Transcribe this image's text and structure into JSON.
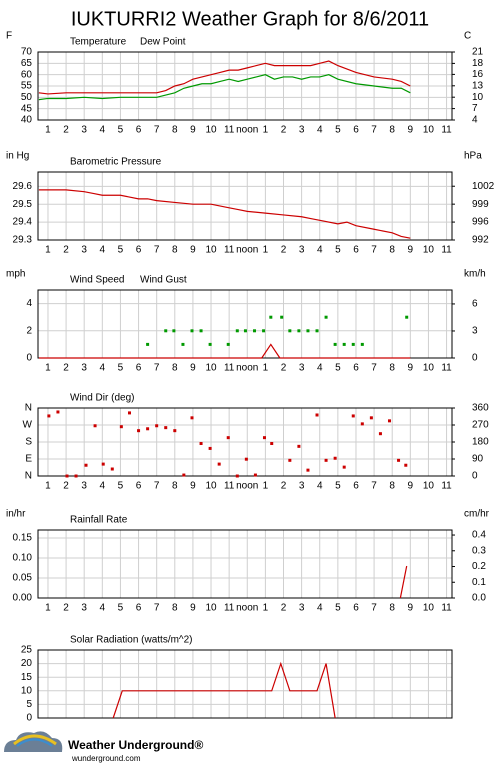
{
  "title": "IUKTURRI2 Weather Graph for 8/6/2011",
  "logo": {
    "name": "Weather Underground®",
    "url": "wunderground.com"
  },
  "chart_data": [
    {
      "type": "line",
      "ylabel": "F",
      "y2label": "C",
      "xlim": [
        0.45,
        23.3
      ],
      "xticks": [
        1,
        2,
        3,
        4,
        5,
        6,
        7,
        8,
        9,
        10,
        11,
        {
          "value": 12,
          "label": "noon"
        },
        {
          "value": 13,
          "label": "1"
        },
        {
          "value": 14,
          "label": "2"
        },
        {
          "value": 15,
          "label": "3"
        },
        {
          "value": 16,
          "label": "4"
        },
        {
          "value": 17,
          "label": "5"
        },
        {
          "value": 18,
          "label": "6"
        },
        {
          "value": 19,
          "label": "7"
        },
        {
          "value": 20,
          "label": "8"
        },
        {
          "value": 21,
          "label": "9"
        },
        {
          "value": 22,
          "label": "10"
        },
        {
          "value": 23,
          "label": "11"
        }
      ],
      "ylim": [
        40,
        70
      ],
      "yticks": [
        40,
        45,
        50,
        55,
        60,
        65,
        70
      ],
      "y2lim": [
        4.4,
        21.1
      ],
      "y2ticks": [
        {
          "value": 4.4,
          "label": "4"
        },
        {
          "value": 7.2,
          "label": "7"
        },
        10,
        {
          "value": 12.8,
          "label": "13"
        },
        {
          "value": 15.6,
          "label": "16"
        },
        {
          "value": 18.3,
          "label": "18"
        },
        {
          "value": 21.1,
          "label": "21"
        }
      ],
      "grid": true,
      "series": [
        {
          "name": "Temperature",
          "color": "#cc0000",
          "x": [
            0.5,
            1,
            2,
            3,
            4,
            5,
            6,
            7,
            7.5,
            8,
            8.5,
            9,
            9.5,
            10,
            10.5,
            11,
            11.5,
            12,
            12.5,
            13,
            13.5,
            14,
            14.5,
            15,
            15.5,
            16,
            16.5,
            17,
            18,
            19,
            20,
            20.5,
            21
          ],
          "values": [
            52,
            51.5,
            52,
            52,
            52,
            52,
            52,
            52,
            53,
            55,
            56,
            58,
            59,
            60,
            61,
            62,
            62,
            63,
            64,
            65,
            64,
            64,
            64,
            64,
            64,
            65,
            66,
            64,
            61,
            59,
            58,
            57,
            55
          ]
        },
        {
          "name": "Dew Point",
          "color": "#009900",
          "x": [
            0.5,
            1,
            2,
            3,
            4,
            5,
            6,
            7,
            7.5,
            8,
            8.5,
            9,
            9.5,
            10,
            10.5,
            11,
            11.5,
            12,
            12.5,
            13,
            13.5,
            14,
            14.5,
            15,
            15.5,
            16,
            16.5,
            17,
            18,
            19,
            20,
            20.5,
            21
          ],
          "values": [
            49,
            49.5,
            49.5,
            50,
            49.5,
            50,
            50,
            50,
            51,
            52,
            54,
            55,
            56,
            56,
            57,
            58,
            57,
            58,
            59,
            60,
            58,
            59,
            59,
            58,
            59,
            59,
            60,
            58,
            56,
            55,
            54,
            54,
            52
          ]
        }
      ]
    },
    {
      "type": "line",
      "ylabel": "in Hg",
      "y2label": "hPa",
      "xlim": [
        0.45,
        23.3
      ],
      "xticks": [
        1,
        2,
        3,
        4,
        5,
        6,
        7,
        8,
        9,
        10,
        11,
        {
          "value": 12,
          "label": "noon"
        },
        {
          "value": 13,
          "label": "1"
        },
        {
          "value": 14,
          "label": "2"
        },
        {
          "value": 15,
          "label": "3"
        },
        {
          "value": 16,
          "label": "4"
        },
        {
          "value": 17,
          "label": "5"
        },
        {
          "value": 18,
          "label": "6"
        },
        {
          "value": 19,
          "label": "7"
        },
        {
          "value": 20,
          "label": "8"
        },
        {
          "value": 21,
          "label": "9"
        },
        {
          "value": 22,
          "label": "10"
        },
        {
          "value": 23,
          "label": "11"
        }
      ],
      "ylim": [
        29.3,
        29.68
      ],
      "yticks": [
        29.3,
        29.4,
        29.5,
        29.6
      ],
      "y2lim": [
        992.2,
        1005.1
      ],
      "y2ticks": [
        {
          "value": 992.2,
          "label": "992"
        },
        {
          "value": 995.6,
          "label": "996"
        },
        999,
        {
          "value": 1002.4,
          "label": "1002"
        }
      ],
      "grid": true,
      "series": [
        {
          "name": "Barometric Pressure",
          "color": "#cc0000",
          "x": [
            0.5,
            1,
            2,
            3,
            3.5,
            4,
            5,
            5.5,
            6,
            6.5,
            7,
            8,
            9,
            10,
            11,
            11.5,
            12,
            13,
            14,
            15,
            15.5,
            16,
            17,
            17.5,
            18,
            19,
            20,
            20.5,
            21
          ],
          "values": [
            29.58,
            29.58,
            29.58,
            29.57,
            29.56,
            29.55,
            29.55,
            29.54,
            29.53,
            29.53,
            29.52,
            29.51,
            29.5,
            29.5,
            29.48,
            29.47,
            29.46,
            29.45,
            29.44,
            29.43,
            29.42,
            29.41,
            29.39,
            29.4,
            29.38,
            29.36,
            29.34,
            29.32,
            29.31
          ]
        }
      ]
    },
    {
      "type": "line",
      "ylabel": "mph",
      "y2label": "km/h",
      "xlim": [
        0.45,
        23.3
      ],
      "xticks": [
        1,
        2,
        3,
        4,
        5,
        6,
        7,
        8,
        9,
        10,
        11,
        {
          "value": 12,
          "label": "noon"
        },
        {
          "value": 13,
          "label": "1"
        },
        {
          "value": 14,
          "label": "2"
        },
        {
          "value": 15,
          "label": "3"
        },
        {
          "value": 16,
          "label": "4"
        },
        {
          "value": 17,
          "label": "5"
        },
        {
          "value": 18,
          "label": "6"
        },
        {
          "value": 19,
          "label": "7"
        },
        {
          "value": 20,
          "label": "8"
        },
        {
          "value": 21,
          "label": "9"
        },
        {
          "value": 22,
          "label": "10"
        },
        {
          "value": 23,
          "label": "11"
        }
      ],
      "ylim": [
        0,
        5
      ],
      "yticks": [
        0,
        2,
        4
      ],
      "y2lim": [
        0,
        8.05
      ],
      "y2ticks": [
        0,
        {
          "value": 3.2,
          "label": "3"
        },
        {
          "value": 6.4,
          "label": "6"
        }
      ],
      "grid": true,
      "series": [
        {
          "name": "Wind Speed",
          "color": "#cc0000",
          "x": [
            0.5,
            12.8,
            13.3,
            13.8,
            21
          ],
          "values": [
            0,
            0,
            1,
            0,
            0
          ]
        },
        {
          "name": "Wind Gust",
          "color": "#009900",
          "type": "scatter",
          "x": [
            6.5,
            7.5,
            7.95,
            8.45,
            8.95,
            9.45,
            9.95,
            10.95,
            11.45,
            11.9,
            12.4,
            12.9,
            13.3,
            13.9,
            14.35,
            14.85,
            15.35,
            15.85,
            16.35,
            16.85,
            17.35,
            17.85,
            18.35,
            20.8
          ],
          "values": [
            1,
            2,
            2,
            1,
            2,
            2,
            1,
            1,
            2,
            2,
            2,
            2,
            3,
            3,
            2,
            2,
            2,
            2,
            3,
            1,
            1,
            1,
            1,
            3
          ]
        }
      ]
    },
    {
      "type": "scatter",
      "xlim": [
        0.45,
        23.3
      ],
      "xticks": [
        1,
        2,
        3,
        4,
        5,
        6,
        7,
        8,
        9,
        10,
        11,
        {
          "value": 12,
          "label": "noon"
        },
        {
          "value": 13,
          "label": "1"
        },
        {
          "value": 14,
          "label": "2"
        },
        {
          "value": 15,
          "label": "3"
        },
        {
          "value": 16,
          "label": "4"
        },
        {
          "value": 17,
          "label": "5"
        },
        {
          "value": 18,
          "label": "6"
        },
        {
          "value": 19,
          "label": "7"
        },
        {
          "value": 20,
          "label": "8"
        },
        {
          "value": 21,
          "label": "9"
        },
        {
          "value": 22,
          "label": "10"
        },
        {
          "value": 23,
          "label": "11"
        }
      ],
      "ylim": [
        0,
        360
      ],
      "yticks": [
        {
          "value": 0,
          "label": "N"
        },
        {
          "value": 90,
          "label": "E"
        },
        {
          "value": 180,
          "label": "S"
        },
        {
          "value": 270,
          "label": "W"
        },
        {
          "value": 360,
          "label": "N"
        }
      ],
      "ytick_color": "#cc0000",
      "y2lim": [
        0,
        360
      ],
      "y2ticks": [
        0,
        90,
        180,
        270,
        360
      ],
      "grid": true,
      "series": [
        {
          "name": "Wind Dir (deg)",
          "color": "#cc0000",
          "x": [
            1.05,
            1.55,
            2.05,
            2.55,
            3.1,
            3.6,
            4.05,
            4.55,
            5.05,
            5.5,
            6.0,
            6.5,
            7.0,
            7.5,
            8.0,
            8.5,
            8.95,
            9.45,
            9.95,
            10.45,
            10.95,
            11.45,
            11.95,
            12.45,
            12.95,
            13.35,
            14.35,
            14.85,
            15.35,
            15.85,
            16.35,
            16.85,
            17.35,
            17.85,
            18.35,
            18.85,
            19.35,
            19.85,
            20.35,
            20.75
          ],
          "values": [
            318,
            339,
            0,
            0,
            57,
            266,
            63,
            37,
            261,
            334,
            240,
            250,
            266,
            256,
            240,
            5,
            308,
            172,
            146,
            63,
            203,
            0,
            89,
            5,
            203,
            172,
            83,
            157,
            31,
            323,
            83,
            94,
            47,
            318,
            276,
            308,
            224,
            292,
            83,
            57
          ]
        }
      ]
    },
    {
      "type": "line",
      "ylabel": "in/hr",
      "y2label": "cm/hr",
      "xlim": [
        0.45,
        23.3
      ],
      "xticks": [
        1,
        2,
        3,
        4,
        5,
        6,
        7,
        8,
        9,
        10,
        11,
        {
          "value": 12,
          "label": "noon"
        },
        {
          "value": 13,
          "label": "1"
        },
        {
          "value": 14,
          "label": "2"
        },
        {
          "value": 15,
          "label": "3"
        },
        {
          "value": 16,
          "label": "4"
        },
        {
          "value": 17,
          "label": "5"
        },
        {
          "value": 18,
          "label": "6"
        },
        {
          "value": 19,
          "label": "7"
        },
        {
          "value": 20,
          "label": "8"
        },
        {
          "value": 21,
          "label": "9"
        },
        {
          "value": 22,
          "label": "10"
        },
        {
          "value": 23,
          "label": "11"
        }
      ],
      "ylim": [
        0,
        0.17
      ],
      "yticks": [
        {
          "value": 0,
          "label": "0.00"
        },
        0.05,
        {
          "value": 0.1,
          "label": "0.10"
        },
        0.15
      ],
      "y2lim": [
        0,
        0.432
      ],
      "y2ticks": [
        {
          "value": 0,
          "label": "0.0"
        },
        0.1,
        0.2,
        0.3,
        0.4
      ],
      "grid": true,
      "series": [
        {
          "name": "Rainfall Rate",
          "color": "#cc0000",
          "x": [
            20.45,
            20.8
          ],
          "values": [
            0,
            0.08
          ]
        }
      ]
    },
    {
      "type": "line",
      "xlim": [
        0.45,
        23.3
      ],
      "xticks": [
        1,
        2,
        3,
        4,
        5,
        6,
        7,
        8,
        9,
        10,
        11,
        12,
        13,
        14,
        15,
        16,
        17,
        18,
        19,
        20,
        21,
        22,
        23
      ],
      "xtick_labels": false,
      "ylim": [
        0,
        25
      ],
      "yticks": [
        0,
        5,
        10,
        15,
        20,
        25
      ],
      "grid": true,
      "series": [
        {
          "name": "Solar Radiation (watts/m^2)",
          "color": "#cc0000",
          "x": [
            4.6,
            5.1,
            13.35,
            13.85,
            14.35,
            15.85,
            16.35,
            16.85
          ],
          "values": [
            0,
            10,
            10,
            20,
            10,
            10,
            20,
            0
          ]
        }
      ]
    }
  ]
}
